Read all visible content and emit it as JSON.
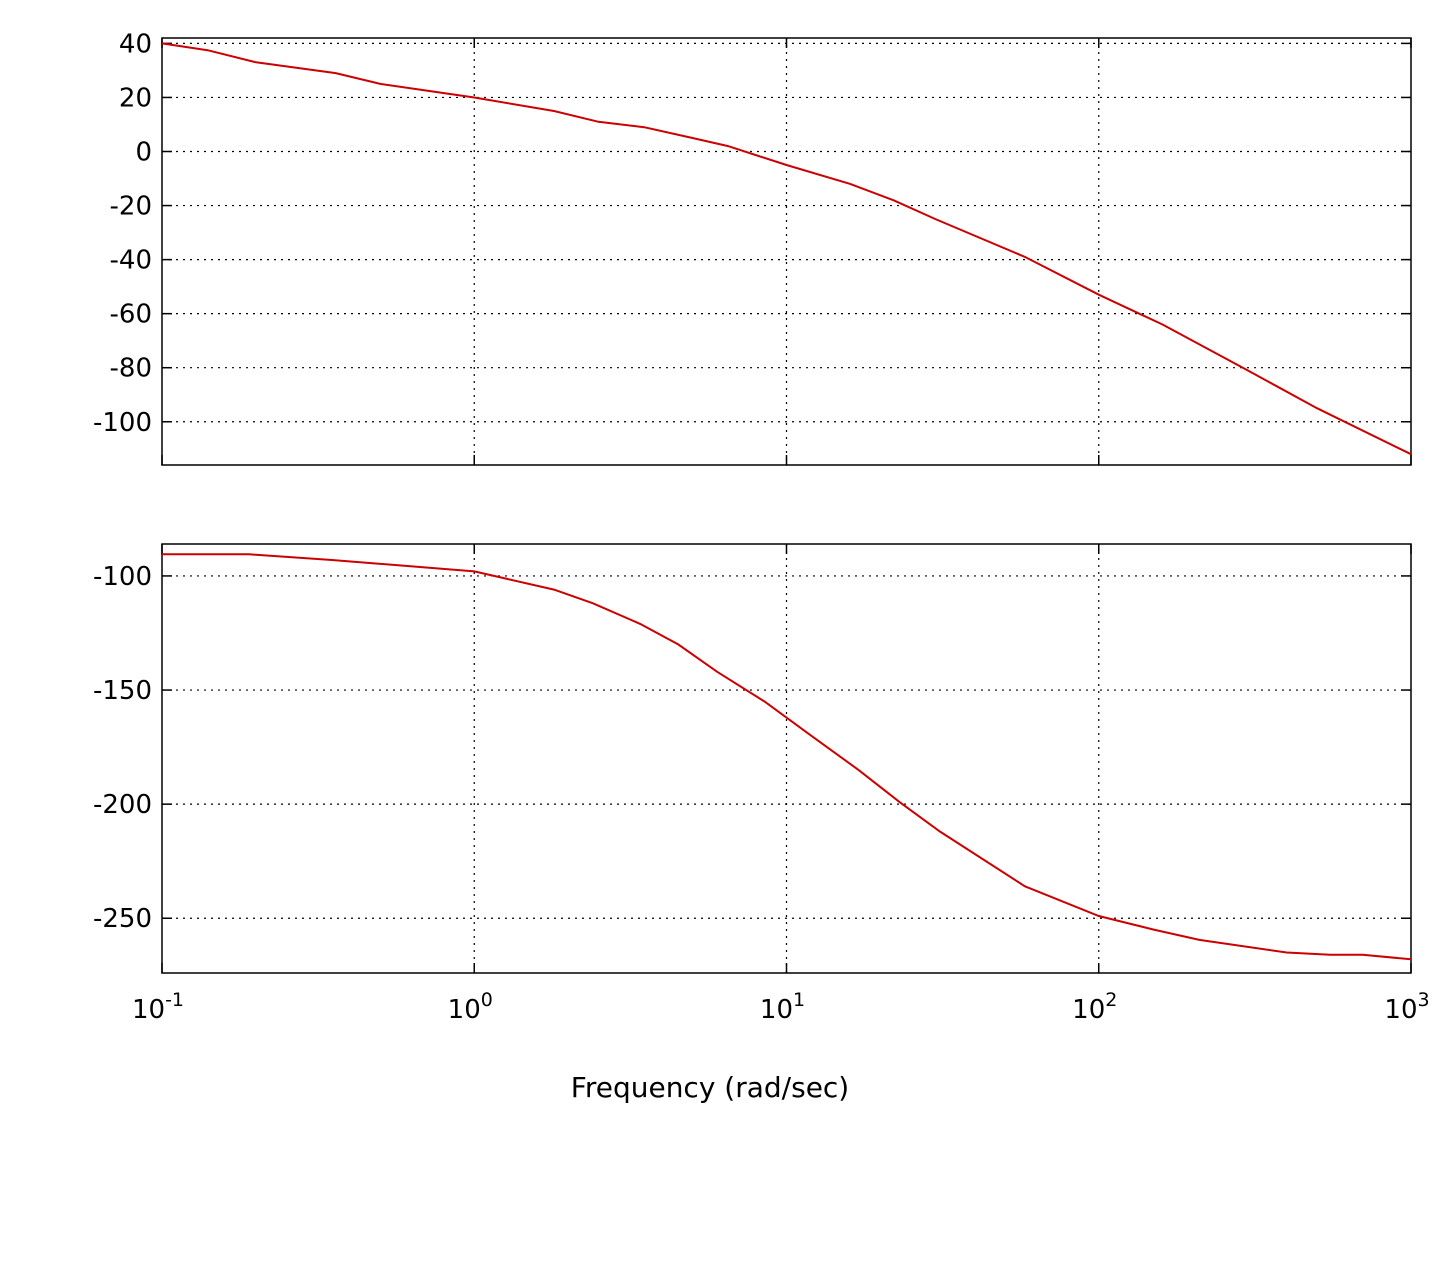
{
  "chart_data": [
    {
      "type": "line",
      "panel": "magnitude",
      "title": "",
      "xlabel": "",
      "ylabel": "",
      "x_scale": "log",
      "xlim": [
        0.1,
        1000
      ],
      "ylim": [
        -116,
        42
      ],
      "grid": true,
      "yticks": [
        40,
        20,
        0,
        -20,
        -40,
        -60,
        -80,
        -100
      ],
      "ytick_labels": [
        "40",
        "20",
        "0",
        "-20",
        "-40",
        "-60",
        "-80",
        "-100"
      ],
      "series": [
        {
          "color": "#cc0000",
          "x": [
            0.1,
            0.14,
            0.2,
            0.36,
            0.5,
            1.0,
            1.8,
            2.5,
            3.5,
            5.0,
            6.5,
            10,
            16,
            22,
            30,
            58,
            100,
            160,
            300,
            500,
            1000
          ],
          "y": [
            40,
            37.5,
            33,
            29,
            25,
            20,
            15,
            11,
            9,
            5,
            2,
            -5,
            -12,
            -18,
            -25,
            -39,
            -53,
            -64,
            -81,
            -95,
            -112
          ]
        }
      ]
    },
    {
      "type": "line",
      "panel": "phase",
      "title": "",
      "xlabel": "Frequency (rad/sec)",
      "ylabel": "",
      "x_scale": "log",
      "xlim": [
        0.1,
        1000
      ],
      "ylim": [
        -274,
        -86
      ],
      "grid": true,
      "xticks": [
        0.1,
        1,
        10,
        100,
        1000
      ],
      "xtick_labels": [
        {
          "base": "10",
          "exp": "-1"
        },
        {
          "base": "10",
          "exp": "0"
        },
        {
          "base": "10",
          "exp": "1"
        },
        {
          "base": "10",
          "exp": "2"
        },
        {
          "base": "10",
          "exp": "3"
        }
      ],
      "yticks": [
        -100,
        -150,
        -200,
        -250
      ],
      "ytick_labels": [
        "-100",
        "-150",
        "-200",
        "-250"
      ],
      "series": [
        {
          "color": "#cc0000",
          "x": [
            0.1,
            0.19,
            0.35,
            1.0,
            1.8,
            2.4,
            3.4,
            4.5,
            6.0,
            8.5,
            12,
            17,
            23,
            31,
            58,
            100,
            150,
            210,
            400,
            550,
            700,
            1000
          ],
          "y": [
            -90.5,
            -90.5,
            -93,
            -98,
            -106,
            -112,
            -121,
            -130,
            -142,
            -155,
            -170,
            -185,
            -199,
            -212,
            -236,
            -249,
            -255,
            -259.5,
            -265,
            -266,
            -266,
            -268
          ]
        }
      ]
    }
  ]
}
